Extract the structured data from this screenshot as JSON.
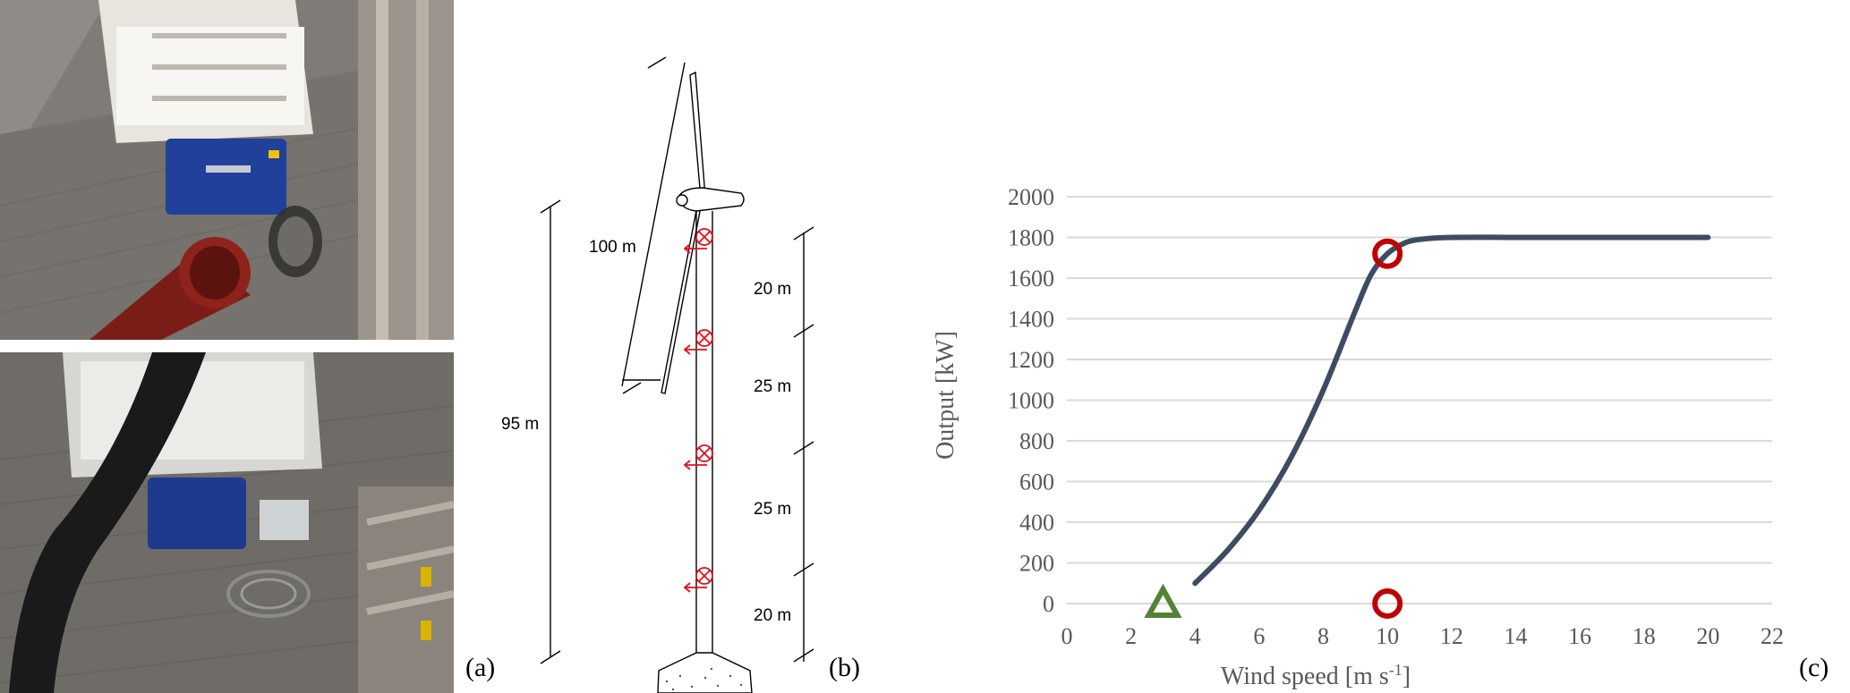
{
  "panels": {
    "a": "(a)",
    "b": "(b)",
    "c": "(c)"
  },
  "diagram": {
    "rotor_label": "100 m",
    "height_label": "95 m",
    "segments": [
      "20 m",
      "25 m",
      "25 m",
      "20 m"
    ],
    "sensor_color": "#e0101a"
  },
  "chart_data": {
    "type": "line",
    "title": "",
    "xlabel": "Wind speed [m s",
    "xlabel_sup": "-1",
    "xlabel_end": "]",
    "ylabel": "Output [kW]",
    "xlim": [
      0,
      22
    ],
    "ylim": [
      0,
      2000
    ],
    "x_ticks": [
      0,
      2,
      4,
      6,
      8,
      10,
      12,
      14,
      16,
      18,
      20,
      22
    ],
    "y_ticks": [
      0,
      200,
      400,
      600,
      800,
      1000,
      1200,
      1400,
      1600,
      1800,
      2000
    ],
    "grid": "horizontal",
    "series": [
      {
        "color": "#3d4c63",
        "x": [
          4,
          5,
          6,
          7,
          8,
          9,
          9.5,
          10,
          10.5,
          11,
          12,
          14,
          16,
          18,
          20
        ],
        "y": [
          100,
          260,
          460,
          720,
          1050,
          1440,
          1620,
          1720,
          1770,
          1790,
          1800,
          1800,
          1800,
          1800,
          1800
        ]
      }
    ],
    "markers": [
      {
        "shape": "circle",
        "x": 10,
        "y": 1720,
        "color": "#c00000"
      },
      {
        "shape": "circle",
        "x": 10,
        "y": 0,
        "color": "#c00000"
      },
      {
        "shape": "triangle",
        "x": 3,
        "y": 0,
        "color": "#548235"
      }
    ]
  }
}
